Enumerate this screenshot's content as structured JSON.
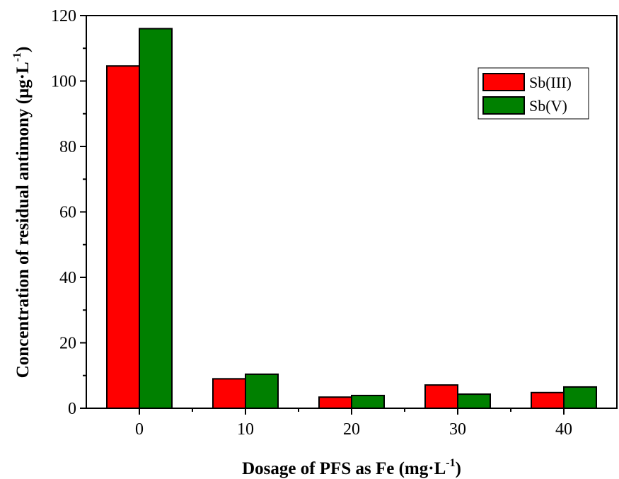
{
  "chart_data": {
    "type": "bar",
    "categories": [
      "0",
      "10",
      "20",
      "30",
      "40"
    ],
    "series": [
      {
        "name": "Sb(III)",
        "color": "#ff0000",
        "values": [
          104.6,
          9.0,
          3.4,
          7.1,
          4.8
        ]
      },
      {
        "name": "Sb(V)",
        "color": "#008000",
        "values": [
          116.0,
          10.4,
          3.9,
          4.3,
          6.5
        ]
      }
    ],
    "xlabel": "Dosage of PFS as Fe (mg·L",
    "xlabel_sup": "-1",
    "xlabel_end": ")",
    "ylabel": "Concentration of residual antimony (μg·L",
    "ylabel_sup": "-1",
    "ylabel_end": ")",
    "ylim": [
      0,
      120
    ],
    "yticks": [
      "0",
      "20",
      "40",
      "60",
      "80",
      "100",
      "120"
    ],
    "grid": false,
    "legend_position": "top-right"
  }
}
